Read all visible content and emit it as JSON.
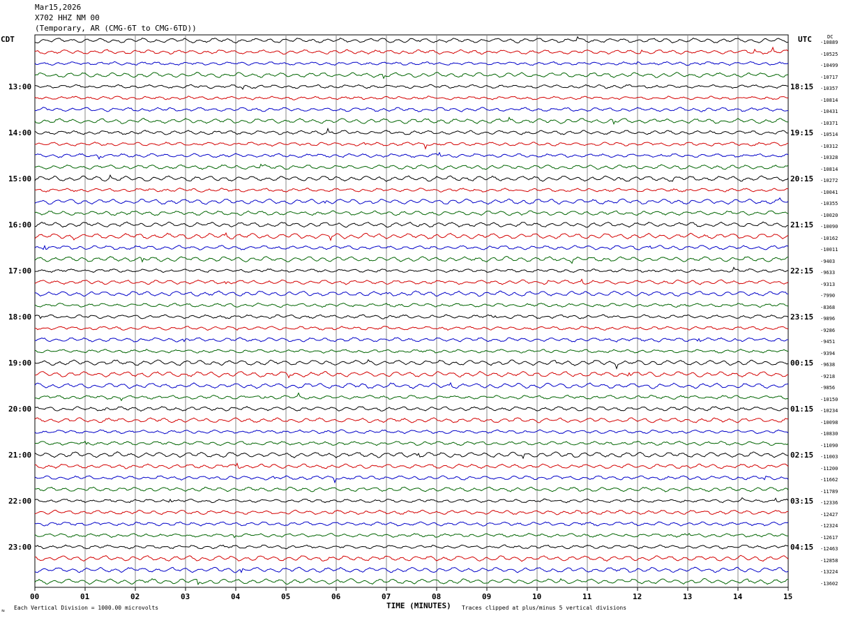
{
  "header": {
    "date": "Mar15,2026",
    "station": "X702 HHZ NM 00",
    "network": "(Temporary, AR (CMG-6T to CMG-6TD))"
  },
  "axis": {
    "left_zone": "CDT",
    "right_zone": "UTC",
    "dc_label": "DC",
    "xlabel": "TIME (MINUTES)",
    "scale_note": "Each Vertical Division = 1000.00 microvolts",
    "clip_note": "Traces clipped at plus/minus 5 vertical divisions",
    "corner_mark": "≈"
  },
  "chart_data": {
    "type": "line",
    "title": "",
    "xlabel": "TIME (MINUTES)",
    "xlim": [
      0,
      15
    ],
    "x_ticks": [
      "00",
      "01",
      "02",
      "03",
      "04",
      "05",
      "06",
      "07",
      "08",
      "09",
      "10",
      "11",
      "12",
      "13",
      "14",
      "15"
    ],
    "left_hour_labels": [
      "13:00",
      "14:00",
      "15:00",
      "16:00",
      "17:00",
      "18:00",
      "19:00",
      "20:00",
      "21:00",
      "22:00",
      "23:00"
    ],
    "right_hour_labels": [
      "18:15",
      "19:15",
      "20:15",
      "21:15",
      "22:15",
      "23:15",
      "00:15",
      "01:15",
      "02:15",
      "03:15",
      "04:15"
    ],
    "trace_colors": [
      "#000000",
      "#d40000",
      "#0000c8",
      "#006400"
    ],
    "dc_offsets": [
      "-10889",
      "-10525",
      "-10499",
      "-10717",
      "-10357",
      "-10814",
      "-10431",
      "-10371",
      "-10514",
      "-10312",
      "-10328",
      "-10814",
      "-10272",
      "-10041",
      "-10355",
      "-10020",
      "-10090",
      "-10162",
      "-10011",
      "-9403",
      "-9633",
      "-9313",
      "-7990",
      "-8368",
      "-9896",
      "-9286",
      "-9451",
      "-9394",
      "-9638",
      "-9218",
      "-9856",
      "-10150",
      "-10234",
      "-10098",
      "-10830",
      "-11090",
      "-11003",
      "-11200",
      "-11662",
      "-11789",
      "-12336",
      "-12427",
      "-12324",
      "-12617",
      "-12463",
      "-12858",
      "-13224",
      "-13602"
    ]
  }
}
